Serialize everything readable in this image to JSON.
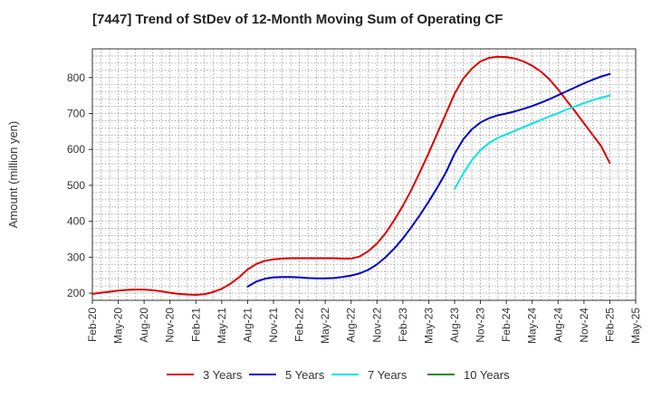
{
  "chart_data": {
    "type": "line",
    "title": "[7447]  Trend of StDev of 12-Month Moving Sum of Operating CF",
    "ylabel": "Amount (million yen)",
    "xlabel": "",
    "ylim": [
      180,
      880
    ],
    "yticks": [
      200,
      300,
      400,
      500,
      600,
      700,
      800
    ],
    "xlim": [
      "Feb-20",
      "May-25"
    ],
    "xticks": [
      "Feb-20",
      "May-20",
      "Aug-20",
      "Nov-20",
      "Feb-21",
      "May-21",
      "Aug-21",
      "Nov-21",
      "Feb-22",
      "May-22",
      "Aug-22",
      "Nov-22",
      "Feb-23",
      "May-23",
      "Aug-23",
      "Nov-23",
      "Feb-24",
      "May-24",
      "Aug-24",
      "Nov-24",
      "Feb-25",
      "May-25"
    ],
    "grid": true,
    "legend_position": "bottom",
    "series": [
      {
        "name": "3 Years",
        "color": "#dd0000",
        "points": [
          [
            "Feb-20",
            198
          ],
          [
            "Mar-20",
            201
          ],
          [
            "Apr-20",
            204
          ],
          [
            "May-20",
            207
          ],
          [
            "Jun-20",
            209
          ],
          [
            "Jul-20",
            210
          ],
          [
            "Aug-20",
            210
          ],
          [
            "Sep-20",
            208
          ],
          [
            "Oct-20",
            205
          ],
          [
            "Nov-20",
            201
          ],
          [
            "Dec-20",
            198
          ],
          [
            "Jan-21",
            196
          ],
          [
            "Feb-21",
            195
          ],
          [
            "Mar-21",
            197
          ],
          [
            "Apr-21",
            203
          ],
          [
            "May-21",
            212
          ],
          [
            "Jun-21",
            226
          ],
          [
            "Jul-21",
            244
          ],
          [
            "Aug-21",
            266
          ],
          [
            "Sep-21",
            281
          ],
          [
            "Oct-21",
            290
          ],
          [
            "Nov-21",
            294
          ],
          [
            "Dec-21",
            296
          ],
          [
            "Jan-22",
            297
          ],
          [
            "Feb-22",
            297
          ],
          [
            "Mar-22",
            297
          ],
          [
            "Apr-22",
            297
          ],
          [
            "May-22",
            297
          ],
          [
            "Jun-22",
            297
          ],
          [
            "Jul-22",
            296
          ],
          [
            "Aug-22",
            296
          ],
          [
            "Sep-22",
            302
          ],
          [
            "Oct-22",
            317
          ],
          [
            "Nov-22",
            338
          ],
          [
            "Dec-22",
            367
          ],
          [
            "Jan-23",
            403
          ],
          [
            "Feb-23",
            443
          ],
          [
            "Mar-23",
            488
          ],
          [
            "Apr-23",
            538
          ],
          [
            "May-23",
            590
          ],
          [
            "Jun-23",
            645
          ],
          [
            "Jul-23",
            700
          ],
          [
            "Aug-23",
            755
          ],
          [
            "Sep-23",
            797
          ],
          [
            "Oct-23",
            825
          ],
          [
            "Nov-23",
            845
          ],
          [
            "Dec-23",
            855
          ],
          [
            "Jan-24",
            858
          ],
          [
            "Feb-24",
            857
          ],
          [
            "Mar-24",
            853
          ],
          [
            "Apr-24",
            845
          ],
          [
            "May-24",
            833
          ],
          [
            "Jun-24",
            817
          ],
          [
            "Jul-24",
            795
          ],
          [
            "Aug-24",
            767
          ],
          [
            "Sep-24",
            736
          ],
          [
            "Oct-24",
            705
          ],
          [
            "Nov-24",
            673
          ],
          [
            "Dec-24",
            641
          ],
          [
            "Jan-25",
            609
          ],
          [
            "Feb-25",
            562
          ]
        ]
      },
      {
        "name": "5 Years",
        "color": "#0000cc",
        "points": [
          [
            "Aug-21",
            218
          ],
          [
            "Sep-21",
            232
          ],
          [
            "Oct-21",
            240
          ],
          [
            "Nov-21",
            244
          ],
          [
            "Dec-21",
            245
          ],
          [
            "Jan-22",
            245
          ],
          [
            "Feb-22",
            244
          ],
          [
            "Mar-22",
            242
          ],
          [
            "Apr-22",
            241
          ],
          [
            "May-22",
            241
          ],
          [
            "Jun-22",
            242
          ],
          [
            "Jul-22",
            245
          ],
          [
            "Aug-22",
            249
          ],
          [
            "Sep-22",
            255
          ],
          [
            "Oct-22",
            265
          ],
          [
            "Nov-22",
            280
          ],
          [
            "Dec-22",
            300
          ],
          [
            "Jan-23",
            324
          ],
          [
            "Feb-23",
            352
          ],
          [
            "Mar-23",
            384
          ],
          [
            "Apr-23",
            418
          ],
          [
            "May-23",
            455
          ],
          [
            "Jun-23",
            494
          ],
          [
            "Jul-23",
            536
          ],
          [
            "Aug-23",
            588
          ],
          [
            "Sep-23",
            628
          ],
          [
            "Oct-23",
            656
          ],
          [
            "Nov-23",
            675
          ],
          [
            "Dec-23",
            687
          ],
          [
            "Jan-24",
            695
          ],
          [
            "Feb-24",
            700
          ],
          [
            "Mar-24",
            706
          ],
          [
            "Apr-24",
            713
          ],
          [
            "May-24",
            721
          ],
          [
            "Jun-24",
            730
          ],
          [
            "Jul-24",
            740
          ],
          [
            "Aug-24",
            751
          ],
          [
            "Sep-24",
            762
          ],
          [
            "Oct-24",
            773
          ],
          [
            "Nov-24",
            784
          ],
          [
            "Dec-24",
            794
          ],
          [
            "Jan-25",
            803
          ],
          [
            "Feb-25",
            810
          ]
        ]
      },
      {
        "name": "7 Years",
        "color": "#00e5e5",
        "points": [
          [
            "Aug-23",
            490
          ],
          [
            "Sep-23",
            533
          ],
          [
            "Oct-23",
            570
          ],
          [
            "Nov-23",
            598
          ],
          [
            "Dec-23",
            618
          ],
          [
            "Jan-24",
            632
          ],
          [
            "Feb-24",
            642
          ],
          [
            "Mar-24",
            652
          ],
          [
            "Apr-24",
            662
          ],
          [
            "May-24",
            672
          ],
          [
            "Jun-24",
            682
          ],
          [
            "Jul-24",
            692
          ],
          [
            "Aug-24",
            701
          ],
          [
            "Sep-24",
            711
          ],
          [
            "Oct-24",
            720
          ],
          [
            "Nov-24",
            729
          ],
          [
            "Dec-24",
            737
          ],
          [
            "Jan-25",
            744
          ],
          [
            "Feb-25",
            750
          ]
        ]
      },
      {
        "name": "10 Years",
        "color": "#228822",
        "points": []
      }
    ]
  }
}
